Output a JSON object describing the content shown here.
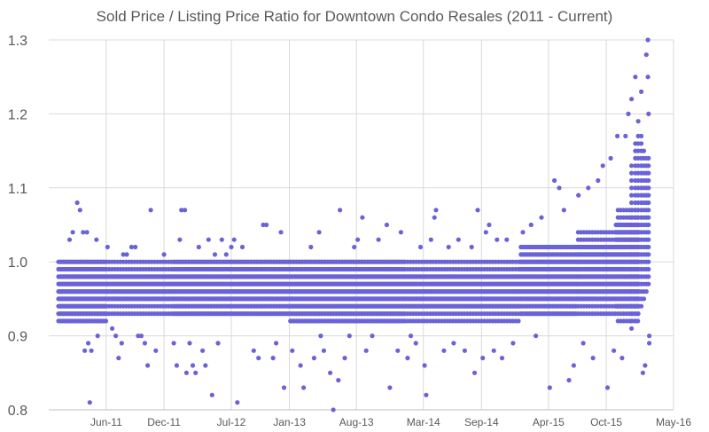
{
  "chart_data": {
    "type": "scatter",
    "title": "Sold Price / Listing Price Ratio for Downtown Condo Resales (2011 - Current)",
    "xlabel": "",
    "ylabel": "",
    "x_axis": {
      "min": "2010-12-01",
      "max": "2016-05-01",
      "ticks": [
        "Jun-11",
        "Dec-11",
        "Jul-12",
        "Jan-13",
        "Aug-13",
        "Mar-14",
        "Sep-14",
        "Apr-15",
        "Oct-15",
        "May-16"
      ],
      "grid": true
    },
    "y_axis": {
      "min": 0.8,
      "max": 1.3,
      "ticks": [
        "0.8",
        "0.9",
        "1.0",
        "1.1",
        "1.2",
        "1.3"
      ],
      "grid": true
    },
    "marker_color": "#6a63d8",
    "series": [
      {
        "bands": [
          {
            "start": "2011-01-01",
            "end": "2011-06-01",
            "step": 0.01,
            "low": 0.92,
            "high": 1.0
          },
          {
            "start": "2011-06-01",
            "end": "2012-01-01",
            "step": 0.01,
            "low": 0.93,
            "high": 1.0
          },
          {
            "start": "2012-01-01",
            "end": "2013-01-01",
            "step": 0.01,
            "low": 0.93,
            "high": 1.0
          },
          {
            "start": "2013-01-01",
            "end": "2014-01-01",
            "step": 0.01,
            "low": 0.92,
            "high": 1.0
          },
          {
            "start": "2014-01-01",
            "end": "2015-01-01",
            "step": 0.01,
            "low": 0.92,
            "high": 1.0
          },
          {
            "start": "2015-01-01",
            "end": "2015-07-01",
            "step": 0.01,
            "low": 0.93,
            "high": 1.02
          },
          {
            "start": "2015-07-01",
            "end": "2015-11-01",
            "step": 0.01,
            "low": 0.93,
            "high": 1.04
          },
          {
            "start": "2015-11-01",
            "end": "2016-01-15",
            "step": 0.01,
            "low": 0.92,
            "high": 1.07
          }
        ],
        "outliers": [
          [
            "2011-01-10",
            0.96
          ],
          [
            "2011-01-20",
            0.98
          ],
          [
            "2011-02-05",
            1.03
          ],
          [
            "2011-02-15",
            1.04
          ],
          [
            "2011-03-01",
            1.08
          ],
          [
            "2011-03-10",
            1.07
          ],
          [
            "2011-03-20",
            1.04
          ],
          [
            "2011-04-01",
            1.04
          ],
          [
            "2011-03-25",
            0.88
          ],
          [
            "2011-04-05",
            0.89
          ],
          [
            "2011-04-15",
            0.88
          ],
          [
            "2011-04-10",
            0.81
          ],
          [
            "2011-05-01",
            1.03
          ],
          [
            "2011-05-05",
            0.9
          ],
          [
            "2011-06-05",
            1.02
          ],
          [
            "2011-06-20",
            0.91
          ],
          [
            "2011-07-01",
            0.9
          ],
          [
            "2011-07-10",
            0.87
          ],
          [
            "2011-07-20",
            0.89
          ],
          [
            "2011-07-25",
            1.01
          ],
          [
            "2011-08-05",
            1.01
          ],
          [
            "2011-08-20",
            1.02
          ],
          [
            "2011-09-01",
            1.02
          ],
          [
            "2011-09-10",
            0.9
          ],
          [
            "2011-09-20",
            0.9
          ],
          [
            "2011-10-01",
            0.89
          ],
          [
            "2011-10-10",
            0.86
          ],
          [
            "2011-10-20",
            1.07
          ],
          [
            "2011-11-05",
            0.88
          ],
          [
            "2011-12-01",
            1.01
          ],
          [
            "2012-01-01",
            0.89
          ],
          [
            "2012-01-10",
            0.86
          ],
          [
            "2012-01-20",
            1.03
          ],
          [
            "2012-01-25",
            1.07
          ],
          [
            "2012-02-05",
            1.07
          ],
          [
            "2012-02-10",
            0.85
          ],
          [
            "2012-02-20",
            0.89
          ],
          [
            "2012-03-01",
            0.86
          ],
          [
            "2012-03-10",
            0.85
          ],
          [
            "2012-03-20",
            1.02
          ],
          [
            "2012-04-01",
            0.88
          ],
          [
            "2012-04-10",
            0.86
          ],
          [
            "2012-04-20",
            1.03
          ],
          [
            "2012-05-01",
            0.82
          ],
          [
            "2012-05-10",
            1.01
          ],
          [
            "2012-05-20",
            0.89
          ],
          [
            "2012-06-01",
            1.03
          ],
          [
            "2012-06-15",
            1.01
          ],
          [
            "2012-07-01",
            1.02
          ],
          [
            "2012-07-10",
            1.03
          ],
          [
            "2012-07-20",
            0.81
          ],
          [
            "2012-08-05",
            1.02
          ],
          [
            "2012-09-10",
            0.88
          ],
          [
            "2012-09-25",
            0.87
          ],
          [
            "2012-10-10",
            1.05
          ],
          [
            "2012-10-20",
            1.05
          ],
          [
            "2012-11-10",
            0.87
          ],
          [
            "2012-11-20",
            0.89
          ],
          [
            "2012-12-05",
            1.04
          ],
          [
            "2012-12-15",
            0.83
          ],
          [
            "2013-01-10",
            0.88
          ],
          [
            "2013-02-05",
            0.86
          ],
          [
            "2013-02-15",
            0.83
          ],
          [
            "2013-03-10",
            1.02
          ],
          [
            "2013-03-20",
            0.87
          ],
          [
            "2013-04-05",
            1.04
          ],
          [
            "2013-04-10",
            0.9
          ],
          [
            "2013-04-20",
            0.88
          ],
          [
            "2013-05-10",
            0.85
          ],
          [
            "2013-05-20",
            0.8
          ],
          [
            "2013-06-05",
            0.84
          ],
          [
            "2013-06-10",
            1.07
          ],
          [
            "2013-06-25",
            0.87
          ],
          [
            "2013-07-10",
            0.9
          ],
          [
            "2013-07-25",
            1.02
          ],
          [
            "2013-08-05",
            1.03
          ],
          [
            "2013-08-20",
            1.06
          ],
          [
            "2013-09-01",
            0.88
          ],
          [
            "2013-09-20",
            0.9
          ],
          [
            "2013-10-10",
            1.03
          ],
          [
            "2013-11-05",
            1.05
          ],
          [
            "2013-11-15",
            0.83
          ],
          [
            "2013-12-10",
            0.88
          ],
          [
            "2013-12-20",
            1.04
          ],
          [
            "2014-01-10",
            0.87
          ],
          [
            "2014-01-20",
            0.9
          ],
          [
            "2014-02-05",
            0.89
          ],
          [
            "2014-02-20",
            1.02
          ],
          [
            "2014-03-05",
            0.86
          ],
          [
            "2014-03-10",
            0.82
          ],
          [
            "2014-03-25",
            1.03
          ],
          [
            "2014-04-05",
            1.06
          ],
          [
            "2014-04-10",
            1.07
          ],
          [
            "2014-05-05",
            0.88
          ],
          [
            "2014-05-20",
            1.02
          ],
          [
            "2014-06-05",
            0.89
          ],
          [
            "2014-06-20",
            1.03
          ],
          [
            "2014-07-10",
            0.88
          ],
          [
            "2014-08-01",
            1.02
          ],
          [
            "2014-08-10",
            0.85
          ],
          [
            "2014-08-20",
            1.07
          ],
          [
            "2014-09-05",
            0.87
          ],
          [
            "2014-09-15",
            1.04
          ],
          [
            "2014-09-25",
            1.05
          ],
          [
            "2014-10-10",
            0.88
          ],
          [
            "2014-10-20",
            1.03
          ],
          [
            "2014-11-05",
            0.87
          ],
          [
            "2014-11-20",
            1.03
          ],
          [
            "2014-12-10",
            0.89
          ],
          [
            "2015-01-10",
            1.04
          ],
          [
            "2015-02-05",
            1.05
          ],
          [
            "2015-02-20",
            0.9
          ],
          [
            "2015-03-10",
            1.06
          ],
          [
            "2015-04-05",
            0.83
          ],
          [
            "2015-04-20",
            1.11
          ],
          [
            "2015-05-05",
            1.1
          ],
          [
            "2015-05-20",
            1.07
          ],
          [
            "2015-06-05",
            0.84
          ],
          [
            "2015-06-20",
            0.86
          ],
          [
            "2015-07-05",
            1.09
          ],
          [
            "2015-07-20",
            0.89
          ],
          [
            "2015-08-05",
            1.1
          ],
          [
            "2015-08-20",
            0.87
          ],
          [
            "2015-09-05",
            1.11
          ],
          [
            "2015-09-20",
            1.13
          ],
          [
            "2015-10-05",
            0.83
          ],
          [
            "2015-10-15",
            1.14
          ],
          [
            "2015-10-25",
            0.88
          ],
          [
            "2015-11-05",
            1.17
          ],
          [
            "2015-11-20",
            0.87
          ],
          [
            "2015-12-01",
            1.17
          ],
          [
            "2015-12-10",
            1.2
          ],
          [
            "2015-12-20",
            1.22
          ],
          [
            "2016-01-01",
            1.25
          ],
          [
            "2016-01-10",
            1.19
          ],
          [
            "2016-01-20",
            1.23
          ],
          [
            "2016-01-25",
            0.85
          ],
          [
            "2016-02-01",
            0.86
          ],
          [
            "2016-02-05",
            1.28
          ],
          [
            "2016-02-10",
            1.3
          ],
          [
            "2016-02-10",
            1.25
          ],
          [
            "2016-02-12",
            1.2
          ],
          [
            "2016-02-14",
            0.89
          ],
          [
            "2016-02-14",
            0.9
          ]
        ],
        "late_columns": [
          [
            "2015-12-20",
            0.91,
            1.13
          ],
          [
            "2016-01-01",
            0.92,
            1.16
          ],
          [
            "2016-01-10",
            0.93,
            1.17
          ],
          [
            "2016-01-20",
            0.94,
            1.17
          ],
          [
            "2016-01-28",
            0.95,
            1.15
          ],
          [
            "2016-02-05",
            0.96,
            1.14
          ],
          [
            "2016-02-12",
            0.97,
            1.14
          ]
        ]
      }
    ],
    "legend": "none"
  }
}
